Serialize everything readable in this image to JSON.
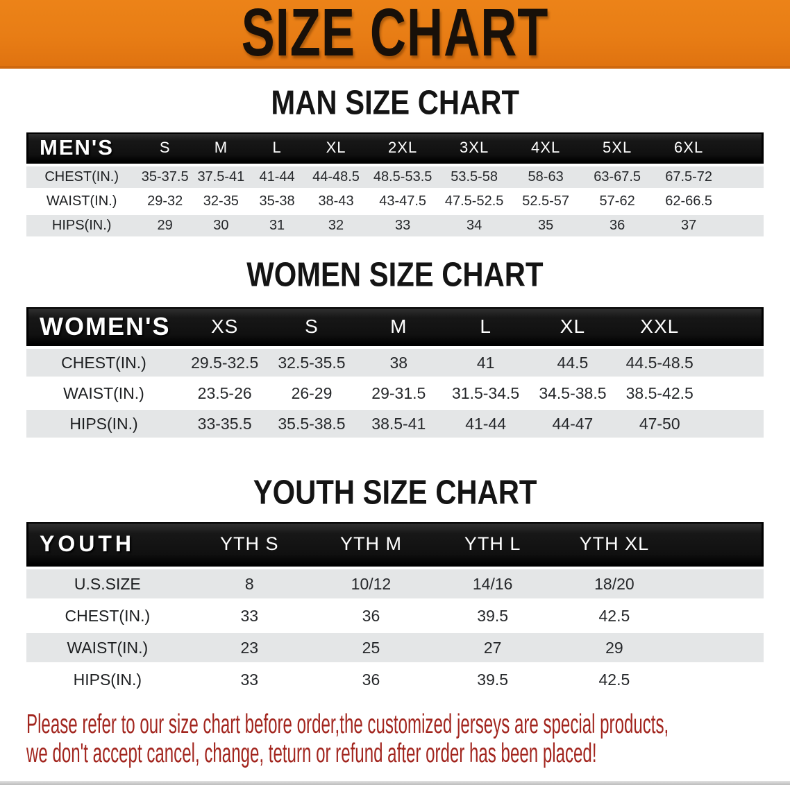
{
  "banner": {
    "title": "SIZE CHART"
  },
  "colors": {
    "banner_bg": "#e87d15",
    "header_bar": "#141414",
    "row_shade": "#e4e6e7",
    "footer_text": "#a2251e"
  },
  "men_section": {
    "heading": "MAN SIZE CHART",
    "table": {
      "corner_label": "MEN'S",
      "columns": [
        "S",
        "M",
        "L",
        "XL",
        "2XL",
        "3XL",
        "4XL",
        "5XL",
        "6XL"
      ],
      "rows": [
        {
          "label": "CHEST(IN.)",
          "values": [
            "35-37.5",
            "37.5-41",
            "41-44",
            "44-48.5",
            "48.5-53.5",
            "53.5-58",
            "58-63",
            "63-67.5",
            "67.5-72"
          ]
        },
        {
          "label": "WAIST(IN.)",
          "values": [
            "29-32",
            "32-35",
            "35-38",
            "38-43",
            "43-47.5",
            "47.5-52.5",
            "52.5-57",
            "57-62",
            "62-66.5"
          ]
        },
        {
          "label": "HIPS(IN.)",
          "values": [
            "29",
            "30",
            "31",
            "32",
            "33",
            "34",
            "35",
            "36",
            "37"
          ]
        }
      ]
    }
  },
  "women_section": {
    "heading": "WOMEN SIZE CHART",
    "table": {
      "corner_label": "WOMEN'S",
      "columns": [
        "XS",
        "S",
        "M",
        "L",
        "XL",
        "XXL"
      ],
      "rows": [
        {
          "label": "CHEST(IN.)",
          "values": [
            "29.5-32.5",
            "32.5-35.5",
            "38",
            "41",
            "44.5",
            "44.5-48.5"
          ]
        },
        {
          "label": "WAIST(IN.)",
          "values": [
            "23.5-26",
            "26-29",
            "29-31.5",
            "31.5-34.5",
            "34.5-38.5",
            "38.5-42.5"
          ]
        },
        {
          "label": "HIPS(IN.)",
          "values": [
            "33-35.5",
            "35.5-38.5",
            "38.5-41",
            "41-44",
            "44-47",
            "47-50"
          ]
        }
      ]
    }
  },
  "youth_section": {
    "heading": "YOUTH SIZE CHART",
    "table": {
      "corner_label": "YOUTH",
      "columns": [
        "YTH S",
        "YTH M",
        "YTH L",
        "YTH XL"
      ],
      "rows": [
        {
          "label": "U.S.SIZE",
          "values": [
            "8",
            "10/12",
            "14/16",
            "18/20"
          ]
        },
        {
          "label": "CHEST(IN.)",
          "values": [
            "33",
            "36",
            "39.5",
            "42.5"
          ]
        },
        {
          "label": "WAIST(IN.)",
          "values": [
            "23",
            "25",
            "27",
            "29"
          ]
        },
        {
          "label": "HIPS(IN.)",
          "values": [
            "33",
            "36",
            "39.5",
            "42.5"
          ]
        }
      ]
    }
  },
  "footer": {
    "line1": "Please refer to our size chart before order,the customized jerseys are special products,",
    "line2": "we don't accept cancel, change, teturn or refund after order has been placed!"
  }
}
